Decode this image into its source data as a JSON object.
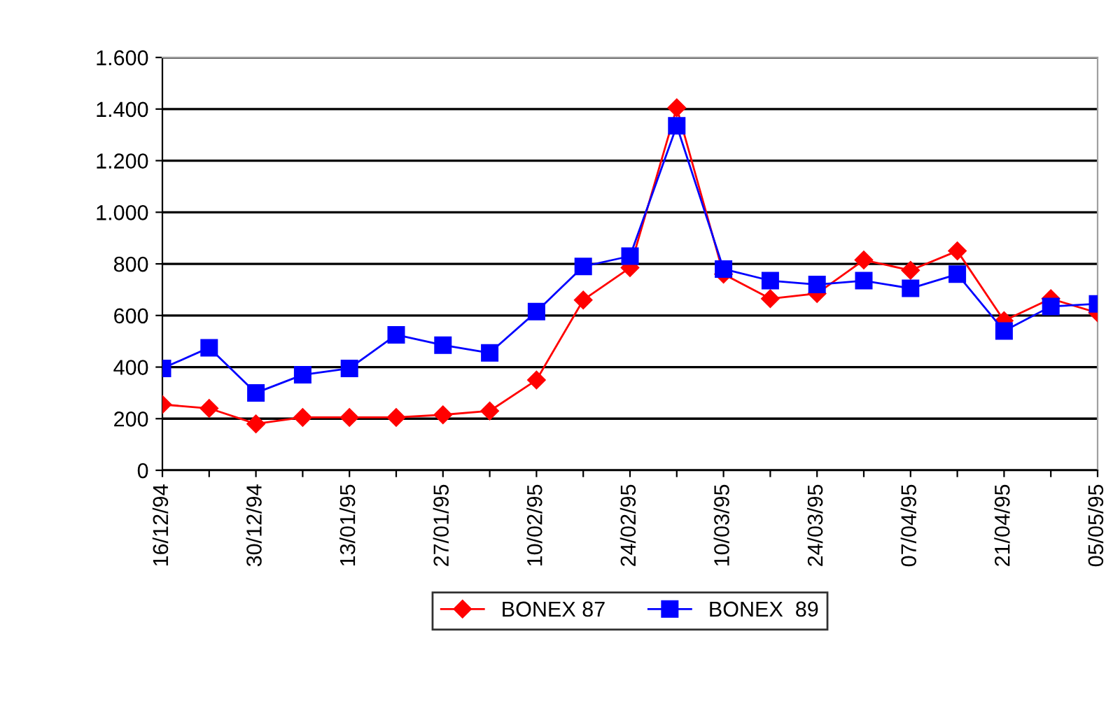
{
  "chart_data": {
    "type": "line",
    "categories": [
      "16/12/94",
      null,
      "30/12/94",
      null,
      "13/01/95",
      null,
      "27/01/95",
      null,
      "10/02/95",
      null,
      "24/02/95",
      null,
      "10/03/95",
      null,
      "24/03/95",
      null,
      "07/04/95",
      null,
      "21/04/95",
      null,
      "05/05/95"
    ],
    "series": [
      {
        "name": "BONEX 87",
        "color": "#ff0000",
        "marker": "diamond",
        "values": [
          255,
          240,
          180,
          205,
          205,
          205,
          215,
          230,
          350,
          660,
          785,
          1405,
          760,
          665,
          685,
          815,
          775,
          850,
          580,
          665,
          610
        ]
      },
      {
        "name": "BONEX  89",
        "color": "#0000ff",
        "marker": "square",
        "values": [
          395,
          475,
          300,
          370,
          395,
          525,
          485,
          455,
          615,
          790,
          830,
          1335,
          780,
          735,
          720,
          735,
          705,
          760,
          540,
          635,
          645
        ]
      }
    ],
    "ylim": [
      0,
      1600
    ],
    "yticks": [
      0,
      200,
      400,
      600,
      800,
      {
        "value": 1000,
        "label": "1.000"
      },
      {
        "value": 1200,
        "label": "1.200"
      },
      {
        "value": 1400,
        "label": "1.400"
      },
      {
        "value": 1600,
        "label": "1.600"
      }
    ],
    "grid": "y",
    "legend": "bottom",
    "line_style": "solid"
  }
}
